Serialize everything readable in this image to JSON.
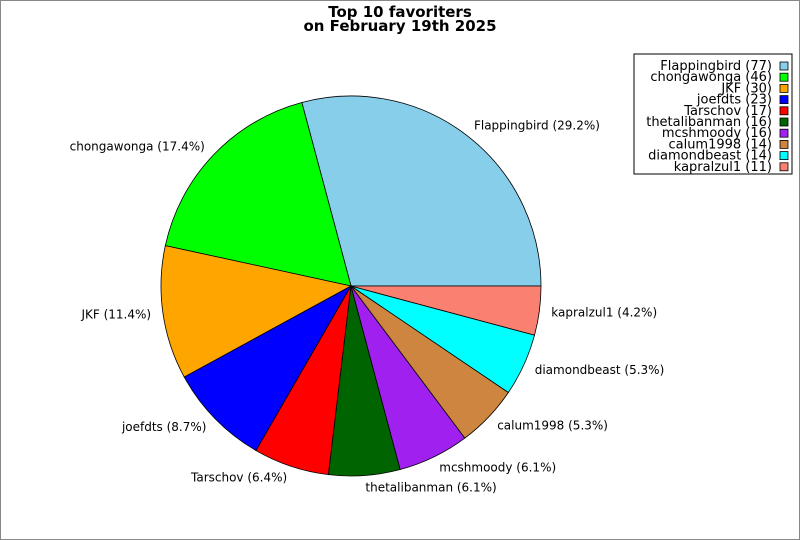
{
  "chart_data": {
    "type": "pie",
    "title": [
      "Top 10 favoriters",
      "on February 19th 2025"
    ],
    "categories": [
      "Flappingbird",
      "chongawonga",
      "JKF",
      "joefdts",
      "Tarschov",
      "thetalibanman",
      "mcshmoody",
      "calum1998",
      "diamondbeast",
      "kapralzul1"
    ],
    "values": [
      77,
      46,
      30,
      23,
      17,
      16,
      16,
      14,
      14,
      11
    ],
    "slice_labels": [
      "Flappingbird (29.2%)",
      "chongawonga (17.4%)",
      "JKF (11.4%)",
      "joefdts (8.7%)",
      "Tarschov (6.4%)",
      "thetalibanman (6.1%)",
      "mcshmoody (6.1%)",
      "calum1998 (5.3%)",
      "diamondbeast (5.3%)",
      "kapralzul1 (4.2%)"
    ],
    "legend_entries": [
      "Flappingbird (77)",
      "chongawonga (46)",
      "JKF (30)",
      "joefdts (23)",
      "Tarschov (17)",
      "thetalibanman (16)",
      "mcshmoody (16)",
      "calum1998 (14)",
      "diamondbeast (14)",
      "kapralzul1 (11)"
    ],
    "colors": [
      "#87CEEB",
      "#00FF00",
      "#FFA500",
      "#0000FF",
      "#FF0000",
      "#006400",
      "#A020F0",
      "#CD853F",
      "#00FFFF",
      "#FA8072"
    ],
    "legend_placement": "top-right",
    "start_angle": "3 o'clock",
    "direction": "counterclockwise"
  }
}
